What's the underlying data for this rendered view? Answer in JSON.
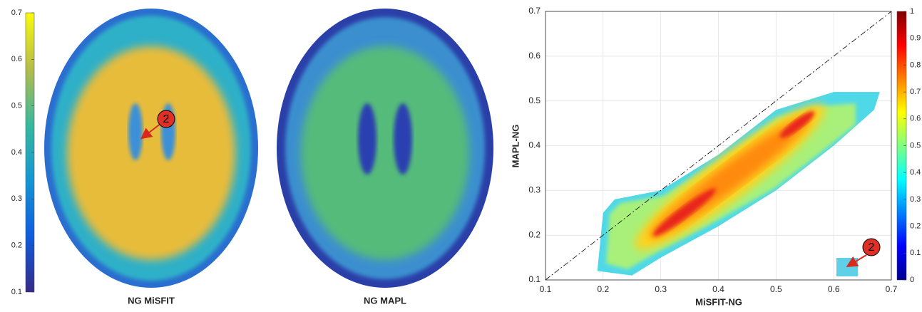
{
  "figure": {
    "colorbar": {
      "lim": [
        0.1,
        0.7
      ],
      "ticks": [
        0.1,
        0.2,
        0.3,
        0.4,
        0.5,
        0.6,
        0.7
      ]
    },
    "images": [
      {
        "label": "NG MiSFIT",
        "annotation": "2"
      },
      {
        "label": "NG MAPL"
      }
    ]
  },
  "chart_data": {
    "type": "density",
    "xlabel": "MiSFIT-NG",
    "ylabel": "MAPL-NG",
    "xlim": [
      0.1,
      0.7
    ],
    "ylim": [
      0.1,
      0.7
    ],
    "xticks": [
      0.1,
      0.2,
      0.3,
      0.4,
      0.5,
      0.6,
      0.7
    ],
    "yticks": [
      0.1,
      0.2,
      0.3,
      0.4,
      0.5,
      0.6,
      0.7
    ],
    "grid": true,
    "annotation": "2",
    "colorbar": {
      "lim": [
        0,
        1
      ],
      "ticks": [
        0,
        0.1,
        0.2,
        0.3,
        0.4,
        0.5,
        0.6,
        0.7,
        0.8,
        0.9,
        1
      ]
    }
  }
}
